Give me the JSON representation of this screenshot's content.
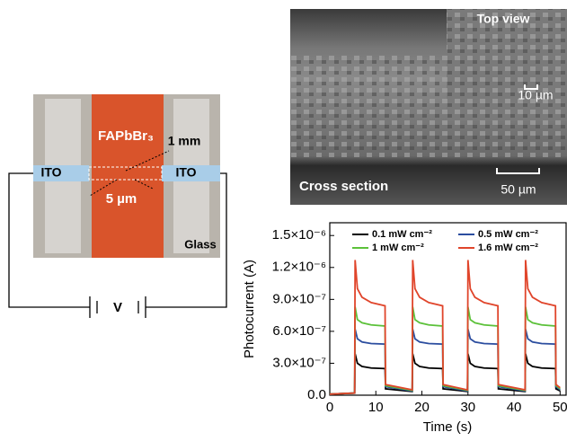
{
  "chart_data": {
    "type": "line",
    "x_label": "Time (s)",
    "y_label": "Photocurrent (A)",
    "x": [
      0,
      5.4,
      5.5,
      6.0,
      7,
      9,
      12,
      12.1,
      17.9,
      18.0,
      18.5,
      19.5,
      21.5,
      24.5,
      24.6,
      29.9,
      30.0,
      30.5,
      31.5,
      33.5,
      36.5,
      36.6,
      42.4,
      42.5,
      43.0,
      44.0,
      46.0,
      49.0,
      49.1,
      50
    ],
    "series": [
      {
        "name": "0.1 mW cm⁻²",
        "color": "#000000",
        "values": [
          1e-08,
          2e-08,
          3.9e-07,
          3e-07,
          2.7e-07,
          2.55e-07,
          2.5e-07,
          6e-08,
          3.5e-08,
          3.9e-07,
          3e-07,
          2.7e-07,
          2.55e-07,
          2.5e-07,
          6e-08,
          3.5e-08,
          3.9e-07,
          3e-07,
          2.7e-07,
          2.55e-07,
          2.5e-07,
          6e-08,
          3.5e-08,
          3.9e-07,
          3e-07,
          2.7e-07,
          2.55e-07,
          2.5e-07,
          6e-08,
          4e-08
        ]
      },
      {
        "name": "0.5 mW cm⁻²",
        "color": "#2b4d9f",
        "values": [
          1e-08,
          2e-08,
          6.2e-07,
          5.3e-07,
          5e-07,
          4.85e-07,
          4.8e-07,
          8e-08,
          4e-08,
          6.2e-07,
          5.3e-07,
          5e-07,
          4.85e-07,
          4.8e-07,
          8e-08,
          4e-08,
          6.2e-07,
          5.3e-07,
          5e-07,
          4.85e-07,
          4.8e-07,
          8e-08,
          4e-08,
          6.2e-07,
          5.3e-07,
          5e-07,
          4.85e-07,
          4.8e-07,
          8e-08,
          5e-08
        ]
      },
      {
        "name": "1 mW cm⁻²",
        "color": "#5cc13a",
        "values": [
          1e-08,
          2e-08,
          8.3e-07,
          7.1e-07,
          6.8e-07,
          6.6e-07,
          6.5e-07,
          9e-08,
          4.5e-08,
          8.3e-07,
          7.1e-07,
          6.8e-07,
          6.6e-07,
          6.5e-07,
          9e-08,
          4.5e-08,
          8.3e-07,
          7.1e-07,
          6.8e-07,
          6.6e-07,
          6.5e-07,
          9e-08,
          4.5e-08,
          8.3e-07,
          7.1e-07,
          6.8e-07,
          6.6e-07,
          6.5e-07,
          9e-08,
          6e-08
        ]
      },
      {
        "name": "1.6 mW cm⁻²",
        "color": "#e0452b",
        "values": [
          1e-08,
          2e-08,
          1.27e-06,
          1e-06,
          9.2e-07,
          8.7e-07,
          8.4e-07,
          1e-07,
          5e-08,
          1.27e-06,
          1e-06,
          9.2e-07,
          8.7e-07,
          8.4e-07,
          1e-07,
          5e-08,
          1.27e-06,
          1e-06,
          9.2e-07,
          8.7e-07,
          8.4e-07,
          1e-07,
          5e-08,
          1.27e-06,
          1e-06,
          9.2e-07,
          8.7e-07,
          8.4e-07,
          1e-07,
          7e-08
        ]
      }
    ],
    "xlim": [
      0,
      51.5
    ],
    "xticks": [
      0,
      10,
      20,
      30,
      40,
      50
    ],
    "ylim": [
      0,
      1.62e-06
    ],
    "yticks": [
      {
        "value": 0,
        "label": "0.0"
      },
      {
        "value": 3e-07,
        "label": "3.0×10⁻⁷"
      },
      {
        "value": 6e-07,
        "label": "6.0×10⁻⁷"
      },
      {
        "value": 9e-07,
        "label": "9.0×10⁻⁷"
      },
      {
        "value": 1.2e-06,
        "label": "1.2×10⁻⁶"
      },
      {
        "value": 1.5e-06,
        "label": "1.5×10⁻⁶"
      }
    ],
    "grid": false
  },
  "device": {
    "material": "FAPbBr₃",
    "length": "1 mm",
    "gap": "5 µm",
    "electrode_left": "ITO",
    "electrode_right": "ITO",
    "substrate": "Glass",
    "source": "V"
  },
  "sem": {
    "inset_label": "Top view",
    "inset_scale": "10 µm",
    "main_label": "Cross section",
    "main_scale": "50 µm"
  }
}
